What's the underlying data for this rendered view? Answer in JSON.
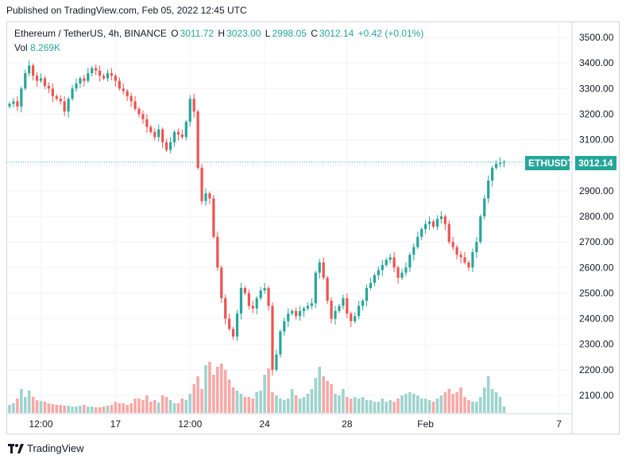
{
  "header": {
    "published": "Published on TradingView.com, Feb 05, 2022 12:45 UTC"
  },
  "legend": {
    "symbol": "Ethereum / TetherUS, 4h, BINANCE",
    "o_label": "O",
    "o": "3011.72",
    "h_label": "H",
    "h": "3023.00",
    "l_label": "L",
    "l": "2998.05",
    "c_label": "C",
    "c": "3012.14",
    "change": "+0.42 (+0.01%)",
    "vol_label": "Vol",
    "vol": "8.269K"
  },
  "price_tag": {
    "ticker": "ETHUSDT",
    "price": "3012.14"
  },
  "footer": {
    "brand": "TradingView"
  },
  "colors": {
    "up": "#26a69a",
    "down": "#ef5350",
    "vol_up": "#9ed3cd",
    "vol_down": "#f7a9a7",
    "tag": "#26a69a"
  },
  "chart_data": {
    "type": "candlestick",
    "ylim": [
      2050,
      3540
    ],
    "y_ticks": [
      "3500.00",
      "3400.00",
      "3300.00",
      "3200.00",
      "3100.00",
      "3000.00",
      "2900.00",
      "2800.00",
      "2700.00",
      "2600.00",
      "2500.00",
      "2400.00",
      "2300.00",
      "2200.00",
      "2100.00"
    ],
    "x_ticks": [
      {
        "label": "12:00",
        "index": 8
      },
      {
        "label": "17",
        "index": 27
      },
      {
        "label": "12:00",
        "index": 46
      },
      {
        "label": "24",
        "index": 65
      },
      {
        "label": "28",
        "index": 86
      },
      {
        "label": "Feb",
        "index": 106
      },
      {
        "label": "7",
        "index": 140
      }
    ],
    "close": [
      3240,
      3250,
      3230,
      3300,
      3360,
      3390,
      3350,
      3330,
      3340,
      3310,
      3300,
      3270,
      3260,
      3250,
      3210,
      3260,
      3300,
      3320,
      3340,
      3330,
      3360,
      3380,
      3370,
      3350,
      3340,
      3360,
      3350,
      3330,
      3300,
      3290,
      3270,
      3250,
      3220,
      3200,
      3180,
      3150,
      3130,
      3110,
      3140,
      3090,
      3060,
      3090,
      3130,
      3120,
      3110,
      3170,
      3260,
      3210,
      2990,
      2860,
      2890,
      2870,
      2720,
      2600,
      2480,
      2400,
      2360,
      2330,
      2420,
      2520,
      2500,
      2450,
      2440,
      2480,
      2510,
      2520,
      2450,
      2200,
      2260,
      2350,
      2390,
      2420,
      2430,
      2410,
      2430,
      2440,
      2450,
      2460,
      2580,
      2620,
      2560,
      2470,
      2400,
      2430,
      2450,
      2480,
      2420,
      2390,
      2410,
      2450,
      2470,
      2520,
      2540,
      2570,
      2590,
      2610,
      2630,
      2640,
      2600,
      2560,
      2580,
      2600,
      2650,
      2680,
      2720,
      2750,
      2770,
      2780,
      2760,
      2790,
      2800,
      2770,
      2700,
      2680,
      2650,
      2640,
      2620,
      2600,
      2660,
      2700,
      2800,
      2870,
      2940,
      2990,
      3005,
      3010,
      3012
    ],
    "volume": [
      10,
      12,
      18,
      30,
      20,
      28,
      20,
      16,
      15,
      14,
      12,
      11,
      10,
      10,
      9,
      9,
      8,
      8,
      9,
      10,
      8,
      8,
      7,
      7,
      8,
      9,
      10,
      14,
      12,
      12,
      10,
      12,
      18,
      18,
      16,
      22,
      14,
      16,
      13,
      22,
      20,
      16,
      12,
      12,
      18,
      16,
      24,
      36,
      46,
      30,
      60,
      64,
      48,
      58,
      62,
      54,
      42,
      32,
      28,
      24,
      20,
      20,
      18,
      26,
      28,
      48,
      56,
      26,
      22,
      18,
      16,
      18,
      30,
      22,
      18,
      20,
      24,
      30,
      44,
      58,
      46,
      40,
      36,
      24,
      22,
      30,
      20,
      18,
      20,
      18,
      20,
      16,
      16,
      14,
      14,
      18,
      14,
      16,
      14,
      18,
      22,
      24,
      26,
      24,
      22,
      18,
      18,
      16,
      14,
      18,
      22,
      26,
      30,
      24,
      26,
      32,
      20,
      16,
      14,
      14,
      20,
      32,
      46,
      30,
      26,
      20,
      8
    ]
  }
}
